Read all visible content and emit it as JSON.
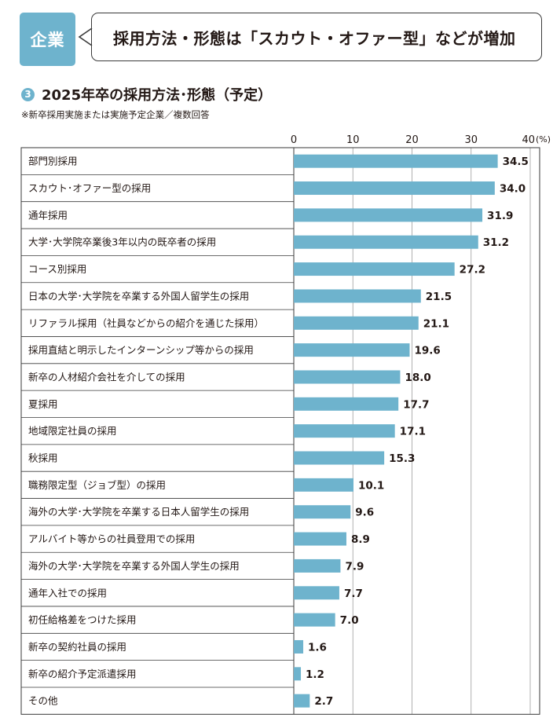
{
  "header": {
    "tag_label": "企業",
    "headline": "採用方法・形態は「スカウト・オファー型」などが増加"
  },
  "section": {
    "number": "3",
    "title": "2025年卒の採用方法･形態（予定）",
    "note": "※新卒採用実施または実施予定企業／複数回答"
  },
  "colors": {
    "bar": "#6eb3cd",
    "accent": "#6eb3cd",
    "text": "#231815"
  },
  "chart_data": {
    "type": "bar",
    "orientation": "horizontal",
    "title": "2025年卒の採用方法･形態（予定）",
    "unit": "(%)",
    "xlim": [
      0,
      40
    ],
    "xticks": [
      0,
      10,
      20,
      30,
      40
    ],
    "categories": [
      "部門別採用",
      "スカウト･オファー型の採用",
      "通年採用",
      "大学･大学院卒業後3年以内の既卒者の採用",
      "コース別採用",
      "日本の大学･大学院を卒業する外国人留学生の採用",
      "リファラル採用（社員などからの紹介を通じた採用）",
      "採用直結と明示したインターンシップ等からの採用",
      "新卒の人材紹介会社を介しての採用",
      "夏採用",
      "地域限定社員の採用",
      "秋採用",
      "職務限定型（ジョブ型）の採用",
      "海外の大学･大学院を卒業する日本人留学生の採用",
      "アルバイト等からの社員登用での採用",
      "海外の大学･大学院を卒業する外国人学生の採用",
      "通年入社での採用",
      "初任給格差をつけた採用",
      "新卒の契約社員の採用",
      "新卒の紹介予定派遣採用",
      "その他"
    ],
    "values": [
      34.5,
      34.0,
      31.9,
      31.2,
      27.2,
      21.5,
      21.1,
      19.6,
      18.0,
      17.7,
      17.1,
      15.3,
      10.1,
      9.6,
      8.9,
      7.9,
      7.7,
      7.0,
      1.6,
      1.2,
      2.7
    ],
    "value_labels": [
      "34.5",
      "34.0",
      "31.9",
      "31.2",
      "27.2",
      "21.5",
      "21.1",
      "19.6",
      "18.0",
      "17.7",
      "17.1",
      "15.3",
      "10.1",
      "9.6",
      "8.9",
      "7.9",
      "7.7",
      "7.0",
      "1.6",
      "1.2",
      "2.7"
    ]
  }
}
